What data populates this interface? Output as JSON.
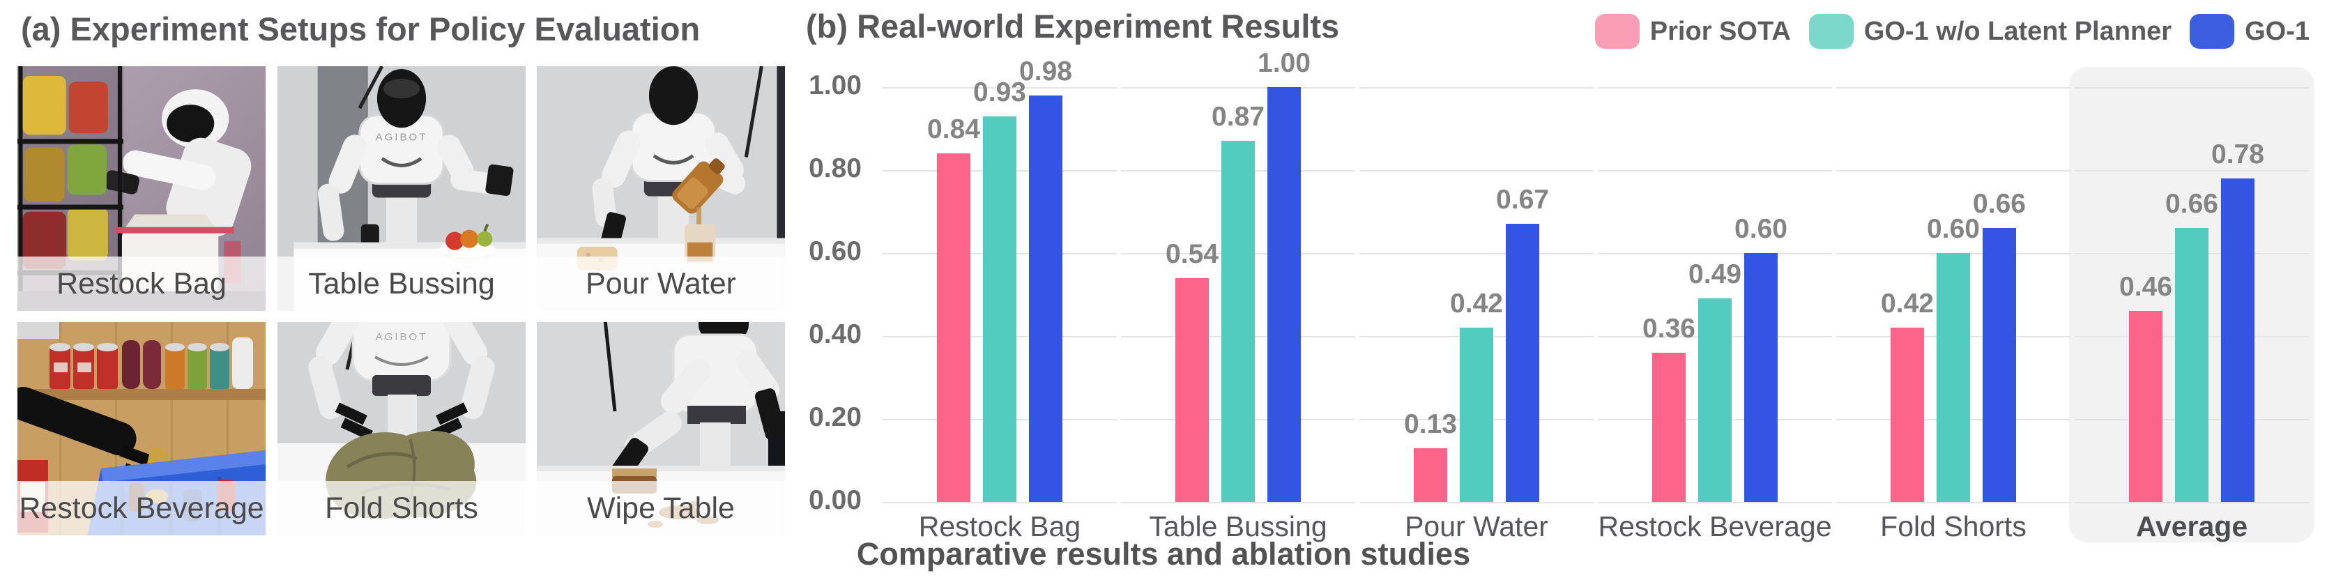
{
  "panel_a": {
    "title": "(a) Experiment Setups for Policy Evaluation",
    "robot_brand": "AGIBOT",
    "setups": [
      "Restock Bag",
      "Table Bussing",
      "Pour Water",
      "Restock Beverage",
      "Fold Shorts",
      "Wipe Table"
    ]
  },
  "panel_b": {
    "title": "(b) Real-world Experiment Results",
    "caption": "Comparative results and ablation studies",
    "legend": [
      {
        "label": "Prior SOTA",
        "swatch": "#FA9EB6"
      },
      {
        "label": "GO-1 w/o Latent Planner",
        "swatch": "#7CD8CB"
      },
      {
        "label": "GO-1",
        "swatch": "#3C5EE0"
      }
    ]
  },
  "colors": {
    "bar_pink": "#FC6589",
    "bar_teal": "#53CCC0",
    "bar_blue": "#3355E2",
    "gridline": "#E4E4E6",
    "average_highlight": "#F2F2F3",
    "title_text": "#58585A",
    "tick_text": "#6B6B6B",
    "value_text": "#848484"
  },
  "chart_data": {
    "type": "bar",
    "title": "(b) Real-world Experiment Results",
    "categories": [
      "Restock Bag",
      "Table Bussing",
      "Pour Water",
      "Restock Beverage",
      "Fold Shorts",
      "Average"
    ],
    "series": [
      {
        "name": "Prior SOTA",
        "color": "#FC6589",
        "values": [
          0.84,
          0.54,
          0.13,
          0.36,
          0.42,
          0.46
        ]
      },
      {
        "name": "GO-1 w/o Latent Planner",
        "color": "#53CCC0",
        "values": [
          0.93,
          0.87,
          0.42,
          0.49,
          0.6,
          0.66
        ]
      },
      {
        "name": "GO-1",
        "color": "#3355E2",
        "values": [
          0.98,
          1.0,
          0.67,
          0.6,
          0.66,
          0.78
        ]
      }
    ],
    "yticks": [
      0,
      0.2,
      0.4,
      0.6,
      0.8,
      1.0
    ],
    "ylim": [
      0,
      1.0
    ],
    "grid": true,
    "value_labels": true,
    "legend_position": "top-right",
    "highlight_category": "Average",
    "xlabel": "",
    "ylabel": ""
  }
}
